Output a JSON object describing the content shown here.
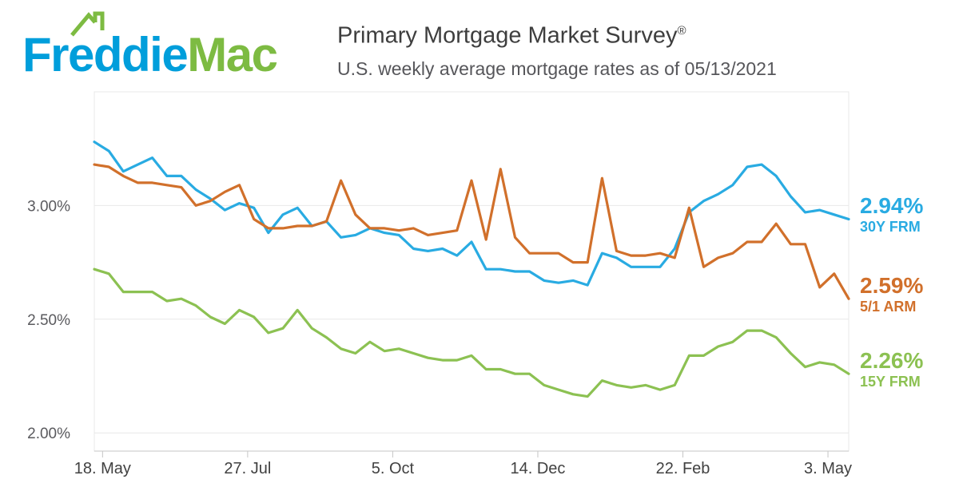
{
  "brand": {
    "logo_text_primary": "Freddie",
    "logo_text_secondary": "Mac",
    "logo_primary_color": "#009EDB",
    "logo_secondary_color": "#7DBB42",
    "house_icon_color": "#7DBB42"
  },
  "header": {
    "title": "Primary Mortgage Market Survey",
    "registered_mark": "®",
    "subtitle": "U.S. weekly average mortgage rates as of 05/13/2021"
  },
  "chart_data": {
    "type": "line",
    "title": "Primary Mortgage Market Survey",
    "as_of_date": "05/13/2021",
    "x_unit": "week",
    "grid": true,
    "value_labels_position": "right",
    "x_tick_labels": [
      "18. May",
      "27. Jul",
      "5. Oct",
      "14. Dec",
      "22. Feb",
      "3. May"
    ],
    "x_tick_indices": [
      0.57,
      10.57,
      20.57,
      30.57,
      40.57,
      50.57
    ],
    "y_ticks": [
      2.0,
      2.5,
      3.0
    ],
    "y_tick_labels": [
      "2.00%",
      "2.50%",
      "3.00%"
    ],
    "ylim": [
      1.92,
      3.5
    ],
    "series": [
      {
        "name": "30Y FRM",
        "color": "#29ABE2",
        "final_label": "2.94%",
        "values": [
          3.28,
          3.24,
          3.15,
          3.18,
          3.21,
          3.13,
          3.13,
          3.07,
          3.03,
          2.98,
          3.01,
          2.99,
          2.88,
          2.96,
          2.99,
          2.91,
          2.93,
          2.86,
          2.87,
          2.9,
          2.88,
          2.87,
          2.81,
          2.8,
          2.81,
          2.78,
          2.84,
          2.72,
          2.72,
          2.71,
          2.71,
          2.67,
          2.66,
          2.67,
          2.65,
          2.79,
          2.77,
          2.73,
          2.73,
          2.73,
          2.81,
          2.97,
          3.02,
          3.05,
          3.09,
          3.17,
          3.18,
          3.13,
          3.04,
          2.97,
          2.98,
          2.96,
          2.94
        ]
      },
      {
        "name": "5/1 ARM",
        "color": "#D1702B",
        "final_label": "2.59%",
        "values": [
          3.18,
          3.17,
          3.13,
          3.1,
          3.1,
          3.09,
          3.08,
          3.0,
          3.02,
          3.06,
          3.09,
          2.94,
          2.9,
          2.9,
          2.91,
          2.91,
          2.93,
          3.11,
          2.96,
          2.9,
          2.9,
          2.89,
          2.9,
          2.87,
          2.88,
          2.89,
          3.11,
          2.85,
          3.16,
          2.86,
          2.79,
          2.79,
          2.79,
          2.75,
          2.75,
          3.12,
          2.8,
          2.78,
          2.78,
          2.79,
          2.77,
          2.99,
          2.73,
          2.77,
          2.79,
          2.84,
          2.84,
          2.92,
          2.83,
          2.83,
          2.64,
          2.7,
          2.59
        ]
      },
      {
        "name": "15Y FRM",
        "color": "#8CC152",
        "final_label": "2.26%",
        "values": [
          2.72,
          2.7,
          2.62,
          2.62,
          2.62,
          2.58,
          2.59,
          2.56,
          2.51,
          2.48,
          2.54,
          2.51,
          2.44,
          2.46,
          2.54,
          2.46,
          2.42,
          2.37,
          2.35,
          2.4,
          2.36,
          2.37,
          2.35,
          2.33,
          2.32,
          2.32,
          2.34,
          2.28,
          2.28,
          2.26,
          2.26,
          2.21,
          2.19,
          2.17,
          2.16,
          2.23,
          2.21,
          2.2,
          2.21,
          2.19,
          2.21,
          2.34,
          2.34,
          2.38,
          2.4,
          2.45,
          2.45,
          2.42,
          2.35,
          2.29,
          2.31,
          2.3,
          2.26
        ]
      }
    ]
  }
}
